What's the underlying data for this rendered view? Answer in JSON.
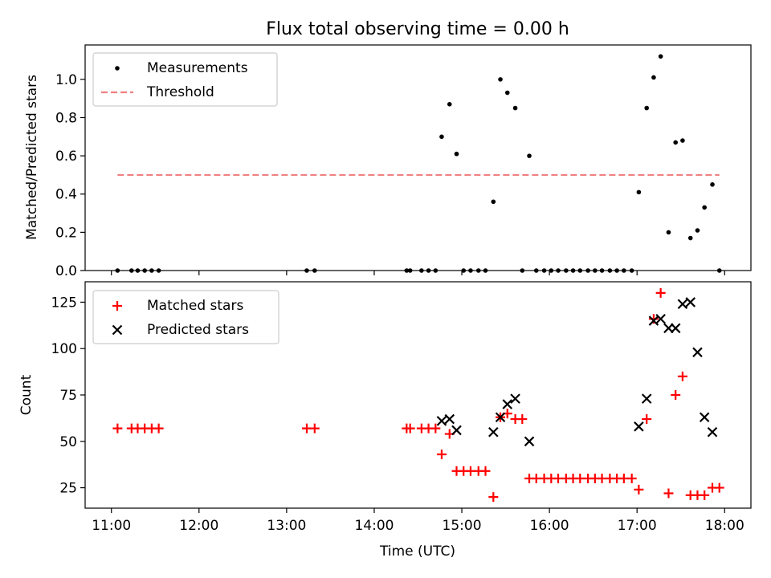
{
  "chart_data": [
    {
      "type": "scatter",
      "title": "Flux total observing time = 0.00 h",
      "xlabel": "",
      "ylabel": "Matched/Predicted stars",
      "xlim": [
        10.7,
        18.3
      ],
      "ylim": [
        0.0,
        1.18
      ],
      "yticks": [
        0.0,
        0.2,
        0.4,
        0.6,
        0.8,
        1.0
      ],
      "ytick_labels": [
        "0.0",
        "0.2",
        "0.4",
        "0.6",
        "0.8",
        "1.0"
      ],
      "xticks": [
        11,
        12,
        13,
        14,
        15,
        16,
        17,
        18
      ],
      "xtick_labels_visible": false,
      "legend": "top-left",
      "series": [
        {
          "name": "Measurements",
          "kind": "scatter",
          "marker": "dot",
          "color": "#000000",
          "x": [
            11.07,
            11.23,
            11.3,
            11.38,
            11.46,
            11.54,
            13.23,
            13.32,
            14.37,
            14.41,
            14.54,
            14.62,
            14.7,
            14.77,
            14.86,
            14.94,
            15.02,
            15.1,
            15.19,
            15.27,
            15.36,
            15.44,
            15.52,
            15.61,
            15.69,
            15.77,
            15.85,
            15.94,
            16.02,
            16.1,
            16.19,
            16.27,
            16.35,
            16.44,
            16.52,
            16.6,
            16.69,
            16.77,
            16.85,
            16.94,
            17.02,
            17.11,
            17.19,
            17.27,
            17.36,
            17.44,
            17.52,
            17.61,
            17.69,
            17.77,
            17.86,
            17.94
          ],
          "y": [
            0.0,
            0.0,
            0.0,
            0.0,
            0.0,
            0.0,
            0.0,
            0.0,
            0.0,
            0.0,
            0.0,
            0.0,
            0.0,
            0.7,
            0.87,
            0.61,
            0.0,
            0.0,
            0.0,
            0.0,
            0.36,
            1.0,
            0.93,
            0.85,
            0.0,
            0.6,
            0.0,
            0.0,
            0.0,
            0.0,
            0.0,
            0.0,
            0.0,
            0.0,
            0.0,
            0.0,
            0.0,
            0.0,
            0.0,
            0.0,
            0.41,
            0.85,
            1.01,
            1.12,
            0.2,
            0.67,
            0.68,
            0.17,
            0.21,
            0.33,
            0.45,
            0.0
          ]
        },
        {
          "name": "Threshold",
          "kind": "line",
          "style": "dashed",
          "color": "#f08080",
          "x": [
            11.07,
            17.94
          ],
          "y": [
            0.5,
            0.5
          ]
        }
      ]
    },
    {
      "type": "scatter",
      "title": "",
      "xlabel": "Time (UTC)",
      "ylabel": "Count",
      "xlim": [
        10.7,
        18.3
      ],
      "ylim": [
        14,
        136
      ],
      "yticks": [
        25,
        50,
        75,
        100,
        125
      ],
      "ytick_labels": [
        "25",
        "50",
        "75",
        "100",
        "125"
      ],
      "xticks": [
        11,
        12,
        13,
        14,
        15,
        16,
        17,
        18
      ],
      "xtick_labels": [
        "11:00",
        "12:00",
        "13:00",
        "14:00",
        "15:00",
        "16:00",
        "17:00",
        "18:00"
      ],
      "legend": "top-left",
      "series": [
        {
          "name": "Matched stars",
          "kind": "scatter",
          "marker": "plus",
          "color": "#ff0000",
          "x": [
            11.07,
            11.23,
            11.3,
            11.38,
            11.46,
            11.54,
            13.23,
            13.32,
            14.37,
            14.41,
            14.54,
            14.62,
            14.7,
            14.77,
            14.86,
            14.94,
            15.02,
            15.1,
            15.19,
            15.27,
            15.36,
            15.44,
            15.52,
            15.61,
            15.69,
            15.77,
            15.85,
            15.94,
            16.02,
            16.1,
            16.19,
            16.27,
            16.35,
            16.44,
            16.52,
            16.6,
            16.69,
            16.77,
            16.85,
            16.94,
            17.02,
            17.11,
            17.19,
            17.27,
            17.36,
            17.44,
            17.52,
            17.61,
            17.69,
            17.77,
            17.86,
            17.94
          ],
          "y": [
            57,
            57,
            57,
            57,
            57,
            57,
            57,
            57,
            57,
            57,
            57,
            57,
            57,
            43,
            54,
            34,
            34,
            34,
            34,
            34,
            20,
            63,
            65,
            62,
            62,
            30,
            30,
            30,
            30,
            30,
            30,
            30,
            30,
            30,
            30,
            30,
            30,
            30,
            30,
            30,
            24,
            62,
            116,
            130,
            22,
            75,
            85,
            21,
            21,
            21,
            25,
            25
          ]
        },
        {
          "name": "Predicted stars",
          "kind": "scatter",
          "marker": "x",
          "color": "#000000",
          "x": [
            14.77,
            14.86,
            14.94,
            15.36,
            15.44,
            15.52,
            15.61,
            15.77,
            17.02,
            17.11,
            17.19,
            17.27,
            17.36,
            17.44,
            17.52,
            17.61,
            17.69,
            17.77,
            17.86
          ],
          "y": [
            61,
            62,
            56,
            55,
            63,
            70,
            73,
            50,
            58,
            73,
            115,
            116,
            111,
            111,
            124,
            125,
            98,
            63,
            55
          ]
        }
      ]
    }
  ]
}
